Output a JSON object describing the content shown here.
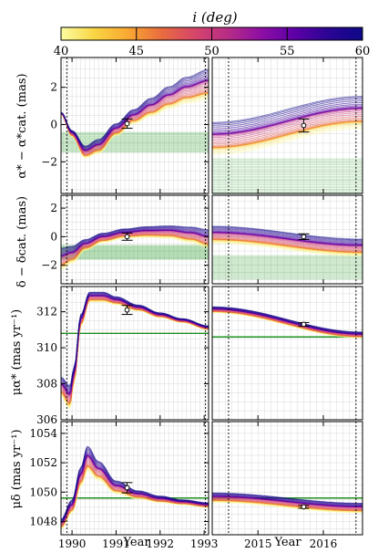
{
  "colorbar": {
    "label": "i (deg)",
    "min": 40,
    "max": 60,
    "ticks": [
      "40",
      "45",
      "50",
      "55",
      "60"
    ],
    "colormap": [
      "#fcfda2",
      "#f9d543",
      "#f9a832",
      "#e96c3f",
      "#d6456a",
      "#b62c87",
      "#8c0ea5",
      "#5c00a6",
      "#2a0593",
      "#0d0887"
    ]
  },
  "xlabels": [
    "Year",
    "Year"
  ],
  "chart_data": [
    {
      "type": "line",
      "panel": "alpha-early",
      "ylabel": "α* − α*cat. (mas)",
      "xlim": [
        1989.75,
        1993.1
      ],
      "ylim": [
        -3.7,
        3.6
      ],
      "yticks": [
        "−2",
        "0",
        "2"
      ],
      "xticks": [
        "1990",
        "1991",
        "1992",
        "1993"
      ],
      "epoch_lines": [
        1989.88,
        1993.03
      ],
      "measurement": {
        "x": 1991.25,
        "y": 0.05,
        "err": 0.25
      },
      "green_band": [
        -1.5,
        -0.4
      ],
      "mean_curve": {
        "x": [
          1989.75,
          1990.0,
          1990.3,
          1990.6,
          1991.0,
          1991.4,
          1991.8,
          1992.2,
          1992.6,
          1993.1
        ],
        "y": [
          0.6,
          -0.5,
          -1.5,
          -1.2,
          -0.3,
          0.4,
          0.9,
          1.4,
          1.8,
          2.1
        ]
      },
      "spread": [
        0.05,
        0.15,
        0.3,
        0.35,
        0.3,
        0.35,
        0.45,
        0.55,
        0.65,
        0.75
      ]
    },
    {
      "type": "line",
      "panel": "alpha-late",
      "xlim": [
        2014.3,
        2016.6
      ],
      "ylim": [
        -3.7,
        3.6
      ],
      "xticks": [
        "2015",
        "2016"
      ],
      "epoch_lines": [
        2014.55,
        2016.5
      ],
      "measurement": {
        "x": 2015.7,
        "y": -0.05,
        "err": 0.35
      },
      "green_band": [
        -3.7,
        -1.8
      ],
      "mean_curve": {
        "x": [
          2014.3,
          2016.6
        ],
        "y": [
          -0.8,
          0.6
        ]
      },
      "spread": [
        0.8,
        0.8
      ]
    },
    {
      "type": "line",
      "panel": "delta-early",
      "ylabel": "δ − δcat. (mas)",
      "xlim": [
        1989.75,
        1993.1
      ],
      "ylim": [
        -3.3,
        2.9
      ],
      "yticks": [
        "−2",
        "0",
        "2"
      ],
      "xticks": [
        "1990",
        "1991",
        "1992",
        "1993"
      ],
      "epoch_lines": [
        1989.88,
        1993.03
      ],
      "measurement": {
        "x": 1991.25,
        "y": 0.0,
        "err": 0.25
      },
      "green_band": [
        -1.6,
        -0.6
      ],
      "mean_curve": {
        "x": [
          1989.75,
          1990.0,
          1990.3,
          1990.7,
          1991.2,
          1991.7,
          1992.2,
          1992.7,
          1993.1
        ],
        "y": [
          -1.6,
          -1.3,
          -0.6,
          -0.1,
          0.2,
          0.3,
          0.3,
          0.1,
          -0.2
        ]
      },
      "spread": [
        0.7,
        0.55,
        0.35,
        0.3,
        0.3,
        0.35,
        0.4,
        0.5,
        0.6
      ]
    },
    {
      "type": "line",
      "panel": "delta-late",
      "xlim": [
        2014.3,
        2016.6
      ],
      "ylim": [
        -3.3,
        2.9
      ],
      "xticks": [
        "2015",
        "2016"
      ],
      "epoch_lines": [
        2014.55,
        2016.5
      ],
      "measurement": {
        "x": 2015.7,
        "y": 0.0,
        "err": 0.2
      },
      "green_band": [
        -3.0,
        -1.3
      ],
      "mean_curve": {
        "x": [
          2014.3,
          2016.6
        ],
        "y": [
          0.1,
          -0.8
        ]
      },
      "spread": [
        0.55,
        0.55
      ]
    },
    {
      "type": "line",
      "panel": "pmra-early",
      "ylabel": "μα* (mas yr⁻¹)",
      "xlim": [
        1989.75,
        1993.1
      ],
      "ylim": [
        306.0,
        313.4
      ],
      "yticks": [
        "306",
        "308",
        "310",
        "312"
      ],
      "xticks": [
        "1990",
        "1991",
        "1992",
        "1993"
      ],
      "epoch_lines": [
        1989.88,
        1993.03
      ],
      "measurement": {
        "x": 1991.25,
        "y": 312.1,
        "err": 0.25
      },
      "green_line": 310.8,
      "mean_curve": {
        "x": [
          1989.75,
          1989.95,
          1990.05,
          1990.2,
          1990.4,
          1990.7,
          1991.0,
          1991.5,
          1992.0,
          1992.5,
          1993.1
        ],
        "y": [
          307.8,
          307.2,
          308.5,
          311.5,
          312.8,
          312.8,
          312.6,
          312.2,
          311.8,
          311.5,
          311.1
        ]
      },
      "spread": [
        0.5,
        0.6,
        0.4,
        0.3,
        0.25,
        0.25,
        0.2,
        0.15,
        0.12,
        0.1,
        0.1
      ]
    },
    {
      "type": "line",
      "panel": "pmra-late",
      "xlim": [
        2014.3,
        2016.6
      ],
      "ylim": [
        306.0,
        313.4
      ],
      "xticks": [
        "2015",
        "2016"
      ],
      "epoch_lines": [
        2014.55,
        2016.5
      ],
      "measurement": {
        "x": 2015.7,
        "y": 311.3,
        "err": 0.1
      },
      "green_line": 310.6,
      "mean_curve": {
        "x": [
          2014.3,
          2016.6
        ],
        "y": [
          312.1,
          310.7
        ]
      },
      "spread": [
        0.15,
        0.15
      ]
    },
    {
      "type": "line",
      "panel": "pmdec-early",
      "ylabel": "μδ (mas yr⁻¹)",
      "xlim": [
        1989.75,
        1993.1
      ],
      "ylim": [
        1047.1,
        1054.8
      ],
      "yticks": [
        "1048",
        "1050",
        "1052",
        "1054"
      ],
      "xticks": [
        "1990",
        "1991",
        "1992",
        "1993"
      ],
      "epoch_lines": [
        1989.88,
        1993.03
      ],
      "measurement": {
        "x": 1991.25,
        "y": 1050.3,
        "err": 0.35
      },
      "green_line": 1049.6,
      "mean_curve": {
        "x": [
          1989.75,
          1990.0,
          1990.2,
          1990.35,
          1990.6,
          1991.0,
          1991.5,
          1992.0,
          1992.5,
          1993.1
        ],
        "y": [
          1047.8,
          1049.0,
          1051.0,
          1052.2,
          1051.4,
          1050.3,
          1049.8,
          1049.5,
          1049.3,
          1049.1
        ]
      },
      "spread": [
        0.3,
        0.4,
        0.6,
        0.8,
        0.6,
        0.4,
        0.25,
        0.2,
        0.15,
        0.15
      ]
    },
    {
      "type": "line",
      "panel": "pmdec-late",
      "xlim": [
        2014.3,
        2016.6
      ],
      "ylim": [
        1047.1,
        1054.8
      ],
      "xticks": [
        "2015",
        "2016"
      ],
      "epoch_lines": [
        2014.55,
        2016.5
      ],
      "measurement": {
        "x": 2015.7,
        "y": 1049.0,
        "err": 0.1
      },
      "green_line": 1049.6,
      "mean_curve": {
        "x": [
          2014.3,
          2016.6
        ],
        "y": [
          1049.6,
          1048.9
        ]
      },
      "spread": [
        0.3,
        0.3
      ]
    }
  ]
}
